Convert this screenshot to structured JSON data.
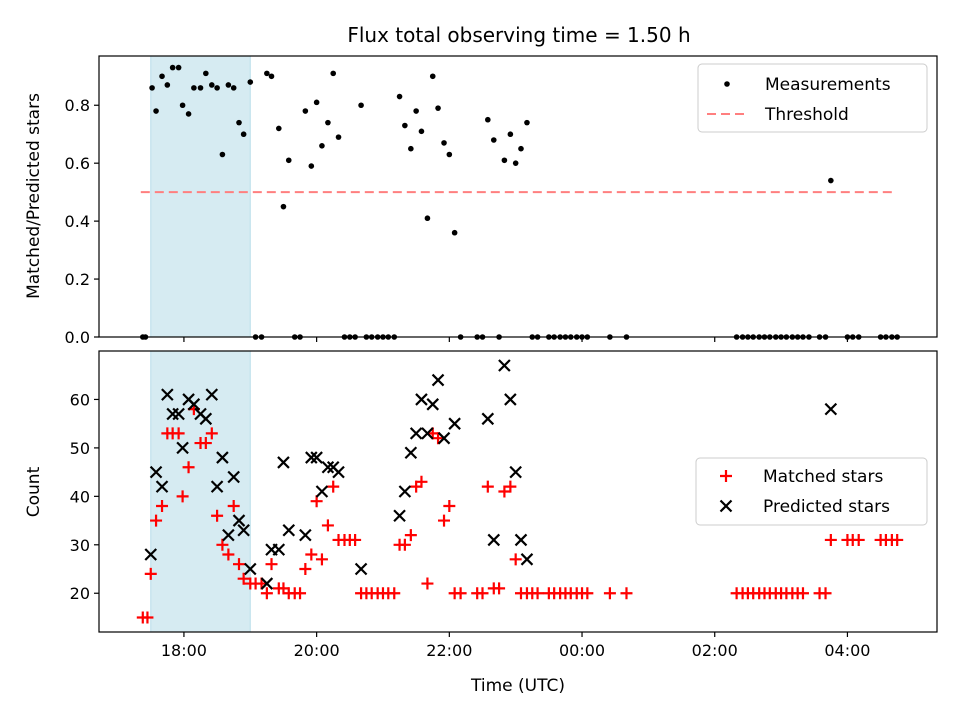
{
  "figure": {
    "title": "Flux total observing time = 1.50 h",
    "xlabel": "Time (UTC)",
    "x_tick_labels": [
      "18:00",
      "20:00",
      "22:00",
      "00:00",
      "02:00",
      "04:00"
    ]
  },
  "chart_data": [
    {
      "type": "scatter",
      "panel": "top",
      "ylabel": "Matched/Predicted stars",
      "xlim": [
        16.72,
        29.35
      ],
      "ylim": [
        0,
        0.97
      ],
      "y_ticks": [
        0.0,
        0.2,
        0.4,
        0.6,
        0.8
      ],
      "y_tick_labels": [
        "0.0",
        "0.2",
        "0.4",
        "0.6",
        "0.8"
      ],
      "x_ticks": [
        18,
        20,
        22,
        24,
        26,
        28
      ],
      "highlight_band": {
        "x": [
          17.5,
          19.0
        ],
        "color": "#add8e6"
      },
      "threshold": {
        "name": "Threshold",
        "y": 0.5,
        "x": [
          17.35,
          28.7
        ],
        "color": "#ff7f7f"
      },
      "series": [
        {
          "name": "Measurements",
          "marker": "dot",
          "color": "#000000",
          "points": [
            [
              17.38,
              0
            ],
            [
              17.42,
              0
            ],
            [
              17.52,
              0.86
            ],
            [
              17.58,
              0.78
            ],
            [
              17.67,
              0.9
            ],
            [
              17.75,
              0.87
            ],
            [
              17.83,
              0.93
            ],
            [
              17.92,
              0.93
            ],
            [
              17.98,
              0.8
            ],
            [
              18.07,
              0.77
            ],
            [
              18.15,
              0.86
            ],
            [
              18.25,
              0.86
            ],
            [
              18.33,
              0.91
            ],
            [
              18.42,
              0.87
            ],
            [
              18.5,
              0.86
            ],
            [
              18.58,
              0.63
            ],
            [
              18.67,
              0.87
            ],
            [
              18.75,
              0.86
            ],
            [
              18.83,
              0.74
            ],
            [
              18.9,
              0.7
            ],
            [
              19.0,
              0.88
            ],
            [
              19.08,
              0
            ],
            [
              19.17,
              0
            ],
            [
              19.25,
              0.91
            ],
            [
              19.32,
              0.9
            ],
            [
              19.43,
              0.72
            ],
            [
              19.5,
              0.45
            ],
            [
              19.58,
              0.61
            ],
            [
              19.67,
              0
            ],
            [
              19.75,
              0
            ],
            [
              19.83,
              0.78
            ],
            [
              19.92,
              0.59
            ],
            [
              20.0,
              0.81
            ],
            [
              20.08,
              0.66
            ],
            [
              20.17,
              0.74
            ],
            [
              20.25,
              0.91
            ],
            [
              20.33,
              0.69
            ],
            [
              20.42,
              0
            ],
            [
              20.5,
              0
            ],
            [
              20.58,
              0
            ],
            [
              20.67,
              0.8
            ],
            [
              20.75,
              0
            ],
            [
              20.83,
              0
            ],
            [
              20.92,
              0
            ],
            [
              21.0,
              0
            ],
            [
              21.08,
              0
            ],
            [
              21.17,
              0
            ],
            [
              21.25,
              0.83
            ],
            [
              21.33,
              0.73
            ],
            [
              21.42,
              0.65
            ],
            [
              21.5,
              0.78
            ],
            [
              21.58,
              0.71
            ],
            [
              21.67,
              0.41
            ],
            [
              21.75,
              0.9
            ],
            [
              21.83,
              0.79
            ],
            [
              21.92,
              0.67
            ],
            [
              22.0,
              0.63
            ],
            [
              22.08,
              0.36
            ],
            [
              22.17,
              0
            ],
            [
              22.42,
              0
            ],
            [
              22.5,
              0
            ],
            [
              22.58,
              0.75
            ],
            [
              22.67,
              0.68
            ],
            [
              22.75,
              0
            ],
            [
              22.83,
              0.61
            ],
            [
              22.92,
              0.7
            ],
            [
              23.0,
              0.6
            ],
            [
              23.08,
              0.65
            ],
            [
              23.17,
              0.74
            ],
            [
              23.25,
              0
            ],
            [
              23.33,
              0
            ],
            [
              23.5,
              0
            ],
            [
              23.58,
              0
            ],
            [
              23.67,
              0
            ],
            [
              23.75,
              0
            ],
            [
              23.83,
              0
            ],
            [
              23.92,
              0
            ],
            [
              24.0,
              0
            ],
            [
              24.08,
              0
            ],
            [
              24.42,
              0
            ],
            [
              24.67,
              0
            ],
            [
              26.33,
              0
            ],
            [
              26.42,
              0
            ],
            [
              26.5,
              0
            ],
            [
              26.58,
              0
            ],
            [
              26.67,
              0
            ],
            [
              26.75,
              0
            ],
            [
              26.83,
              0
            ],
            [
              26.92,
              0
            ],
            [
              27.0,
              0
            ],
            [
              27.08,
              0
            ],
            [
              27.17,
              0
            ],
            [
              27.25,
              0
            ],
            [
              27.33,
              0
            ],
            [
              27.42,
              0
            ],
            [
              27.58,
              0
            ],
            [
              27.67,
              0
            ],
            [
              27.75,
              0.54
            ],
            [
              28.0,
              0
            ],
            [
              28.08,
              0
            ],
            [
              28.17,
              0
            ],
            [
              28.5,
              0
            ],
            [
              28.58,
              0
            ],
            [
              28.67,
              0
            ],
            [
              28.75,
              0
            ]
          ]
        }
      ],
      "legend": {
        "position": "top-right",
        "entries": [
          "Measurements",
          "Threshold"
        ]
      }
    },
    {
      "type": "scatter",
      "panel": "bottom",
      "ylabel": "Count",
      "xlim": [
        16.72,
        29.35
      ],
      "ylim": [
        12,
        70
      ],
      "y_ticks": [
        20,
        30,
        40,
        50,
        60
      ],
      "y_tick_labels": [
        "20",
        "30",
        "40",
        "50",
        "60"
      ],
      "x_ticks": [
        18,
        20,
        22,
        24,
        26,
        28
      ],
      "highlight_band": {
        "x": [
          17.5,
          19.0
        ],
        "color": "#add8e6"
      },
      "series": [
        {
          "name": "Matched stars",
          "marker": "plus",
          "color": "#ff0000",
          "points": [
            [
              17.38,
              15
            ],
            [
              17.45,
              15
            ],
            [
              17.5,
              24
            ],
            [
              17.58,
              35
            ],
            [
              17.67,
              38
            ],
            [
              17.75,
              53
            ],
            [
              17.83,
              53
            ],
            [
              17.92,
              53
            ],
            [
              17.98,
              40
            ],
            [
              18.07,
              46
            ],
            [
              18.15,
              58
            ],
            [
              18.25,
              51
            ],
            [
              18.33,
              51
            ],
            [
              18.42,
              53
            ],
            [
              18.5,
              36
            ],
            [
              18.58,
              30
            ],
            [
              18.67,
              28
            ],
            [
              18.75,
              38
            ],
            [
              18.83,
              26
            ],
            [
              18.9,
              23
            ],
            [
              19.0,
              22
            ],
            [
              19.08,
              22
            ],
            [
              19.17,
              22
            ],
            [
              19.25,
              20
            ],
            [
              19.32,
              26
            ],
            [
              19.43,
              21
            ],
            [
              19.5,
              21
            ],
            [
              19.58,
              20
            ],
            [
              19.67,
              20
            ],
            [
              19.75,
              20
            ],
            [
              19.83,
              25
            ],
            [
              19.92,
              28
            ],
            [
              20.0,
              39
            ],
            [
              20.08,
              27
            ],
            [
              20.17,
              34
            ],
            [
              20.25,
              42
            ],
            [
              20.33,
              31
            ],
            [
              20.42,
              31
            ],
            [
              20.5,
              31
            ],
            [
              20.58,
              31
            ],
            [
              20.67,
              20
            ],
            [
              20.75,
              20
            ],
            [
              20.83,
              20
            ],
            [
              20.92,
              20
            ],
            [
              21.0,
              20
            ],
            [
              21.08,
              20
            ],
            [
              21.17,
              20
            ],
            [
              21.25,
              30
            ],
            [
              21.33,
              30
            ],
            [
              21.42,
              32
            ],
            [
              21.5,
              42
            ],
            [
              21.58,
              43
            ],
            [
              21.67,
              22
            ],
            [
              21.75,
              53
            ],
            [
              21.83,
              52
            ],
            [
              21.92,
              35
            ],
            [
              22.0,
              38
            ],
            [
              22.08,
              20
            ],
            [
              22.17,
              20
            ],
            [
              22.42,
              20
            ],
            [
              22.5,
              20
            ],
            [
              22.58,
              42
            ],
            [
              22.67,
              21
            ],
            [
              22.75,
              21
            ],
            [
              22.83,
              41
            ],
            [
              22.92,
              42
            ],
            [
              23.0,
              27
            ],
            [
              23.08,
              20
            ],
            [
              23.17,
              20
            ],
            [
              23.25,
              20
            ],
            [
              23.33,
              20
            ],
            [
              23.5,
              20
            ],
            [
              23.58,
              20
            ],
            [
              23.67,
              20
            ],
            [
              23.75,
              20
            ],
            [
              23.83,
              20
            ],
            [
              23.92,
              20
            ],
            [
              24.0,
              20
            ],
            [
              24.08,
              20
            ],
            [
              24.42,
              20
            ],
            [
              24.67,
              20
            ],
            [
              26.33,
              20
            ],
            [
              26.42,
              20
            ],
            [
              26.5,
              20
            ],
            [
              26.58,
              20
            ],
            [
              26.67,
              20
            ],
            [
              26.75,
              20
            ],
            [
              26.83,
              20
            ],
            [
              26.92,
              20
            ],
            [
              27.0,
              20
            ],
            [
              27.08,
              20
            ],
            [
              27.17,
              20
            ],
            [
              27.25,
              20
            ],
            [
              27.33,
              20
            ],
            [
              27.58,
              20
            ],
            [
              27.67,
              20
            ],
            [
              27.75,
              31
            ],
            [
              28.0,
              31
            ],
            [
              28.08,
              31
            ],
            [
              28.17,
              31
            ],
            [
              28.5,
              31
            ],
            [
              28.58,
              31
            ],
            [
              28.67,
              31
            ],
            [
              28.75,
              31
            ]
          ]
        },
        {
          "name": "Predicted stars",
          "marker": "x",
          "color": "#000000",
          "points": [
            [
              17.5,
              28
            ],
            [
              17.58,
              45
            ],
            [
              17.67,
              42
            ],
            [
              17.75,
              61
            ],
            [
              17.83,
              57
            ],
            [
              17.92,
              57
            ],
            [
              17.98,
              50
            ],
            [
              18.07,
              60
            ],
            [
              18.15,
              59
            ],
            [
              18.25,
              57
            ],
            [
              18.33,
              56
            ],
            [
              18.42,
              61
            ],
            [
              18.5,
              42
            ],
            [
              18.58,
              48
            ],
            [
              18.67,
              32
            ],
            [
              18.75,
              44
            ],
            [
              18.83,
              35
            ],
            [
              18.9,
              33
            ],
            [
              19.0,
              25
            ],
            [
              19.25,
              22
            ],
            [
              19.32,
              29
            ],
            [
              19.43,
              29
            ],
            [
              19.5,
              47
            ],
            [
              19.58,
              33
            ],
            [
              19.83,
              32
            ],
            [
              19.92,
              48
            ],
            [
              20.0,
              48
            ],
            [
              20.08,
              41
            ],
            [
              20.17,
              46
            ],
            [
              20.25,
              46
            ],
            [
              20.33,
              45
            ],
            [
              20.67,
              25
            ],
            [
              21.25,
              36
            ],
            [
              21.33,
              41
            ],
            [
              21.42,
              49
            ],
            [
              21.5,
              53
            ],
            [
              21.58,
              60
            ],
            [
              21.67,
              53
            ],
            [
              21.75,
              59
            ],
            [
              21.83,
              64
            ],
            [
              21.92,
              52
            ],
            [
              22.08,
              55
            ],
            [
              22.58,
              56
            ],
            [
              22.67,
              31
            ],
            [
              22.83,
              67
            ],
            [
              22.92,
              60
            ],
            [
              23.0,
              45
            ],
            [
              23.08,
              31
            ],
            [
              23.17,
              27
            ],
            [
              27.75,
              58
            ]
          ]
        }
      ],
      "legend": {
        "position": "center-right",
        "entries": [
          "Matched stars",
          "Predicted stars"
        ]
      }
    }
  ]
}
